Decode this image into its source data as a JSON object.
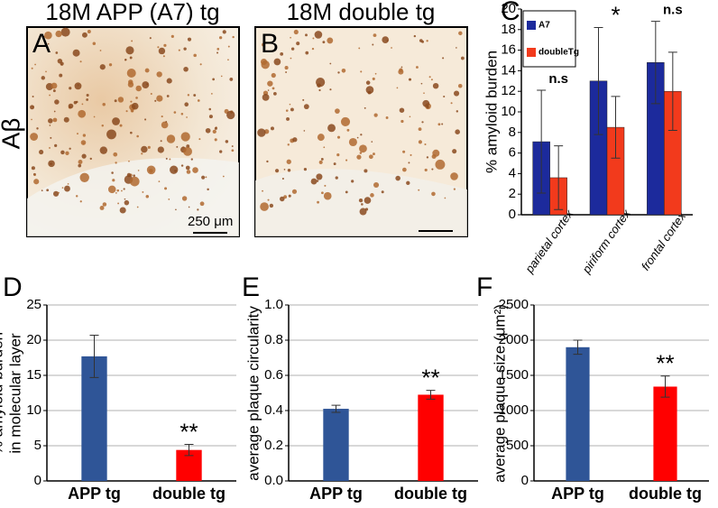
{
  "images": [
    {
      "letter": "A",
      "title": "18M APP (A7) tg",
      "scale_label": "250 μm"
    },
    {
      "letter": "B",
      "title": "18M double tg"
    }
  ],
  "row_label": "Aβ",
  "chart_data": [
    {
      "type": "bar",
      "letter": "C",
      "ylabel": [
        "% amyloid burden"
      ],
      "categories": [
        "parietal cortex",
        "piriform cortex",
        "frontal cortex"
      ],
      "series": [
        {
          "name": "A7",
          "color": "#1c2a9c",
          "values": [
            7.1,
            13,
            14.8
          ],
          "errors": [
            5,
            5.2,
            4
          ]
        },
        {
          "name": "doubleTg",
          "color": "#f23a1c",
          "values": [
            3.6,
            8.5,
            12
          ],
          "errors": [
            3.1,
            3,
            3.8
          ]
        }
      ],
      "annotations": [
        {
          "text": "n.s",
          "category": "parietal cortex"
        },
        {
          "text": "*",
          "category": "piriform cortex"
        },
        {
          "text": "n.s",
          "category": "frontal cortex"
        }
      ],
      "ylim": [
        0,
        20
      ],
      "yticks": [
        0,
        2,
        4,
        6,
        8,
        10,
        12,
        14,
        16,
        18,
        20
      ],
      "grid": false,
      "legend": "top-left"
    },
    {
      "type": "bar",
      "letter": "D",
      "ylabel": [
        "% amyloid burden",
        "in molecular layer"
      ],
      "categories": [
        "APP tg",
        "double tg"
      ],
      "colors": [
        "#2f5597",
        "#ff0000"
      ],
      "values": [
        17.7,
        4.4
      ],
      "errors": [
        3,
        0.8
      ],
      "annotations": [
        {
          "text": "**",
          "category": "double tg"
        }
      ],
      "ylim": [
        0,
        25
      ],
      "yticks": [
        0,
        5,
        10,
        15,
        20,
        25
      ],
      "grid": true
    },
    {
      "type": "bar",
      "letter": "E",
      "ylabel": [
        "average plaque circularity"
      ],
      "categories": [
        "APP tg",
        "double tg"
      ],
      "colors": [
        "#2f5597",
        "#ff0000"
      ],
      "values": [
        0.41,
        0.49
      ],
      "errors": [
        0.02,
        0.025
      ],
      "annotations": [
        {
          "text": "**",
          "category": "double tg"
        }
      ],
      "ylim": [
        0,
        1
      ],
      "yticks": [
        {
          "value": 0,
          "label": "0.0"
        },
        0.2,
        0.4,
        0.6,
        0.8,
        {
          "value": 1,
          "label": "1.0"
        }
      ],
      "grid": true
    },
    {
      "type": "bar",
      "letter": "F",
      "ylabel": [
        "average plaque size (μm²)"
      ],
      "categories": [
        "APP tg",
        "double tg"
      ],
      "colors": [
        "#2f5597",
        "#ff0000"
      ],
      "values": [
        1900,
        1340
      ],
      "errors": [
        100,
        150
      ],
      "annotations": [
        {
          "text": "**",
          "category": "double tg"
        }
      ],
      "ylim": [
        0,
        2500
      ],
      "yticks": [
        0,
        500,
        1000,
        1500,
        2000,
        2500
      ],
      "grid": true
    }
  ]
}
